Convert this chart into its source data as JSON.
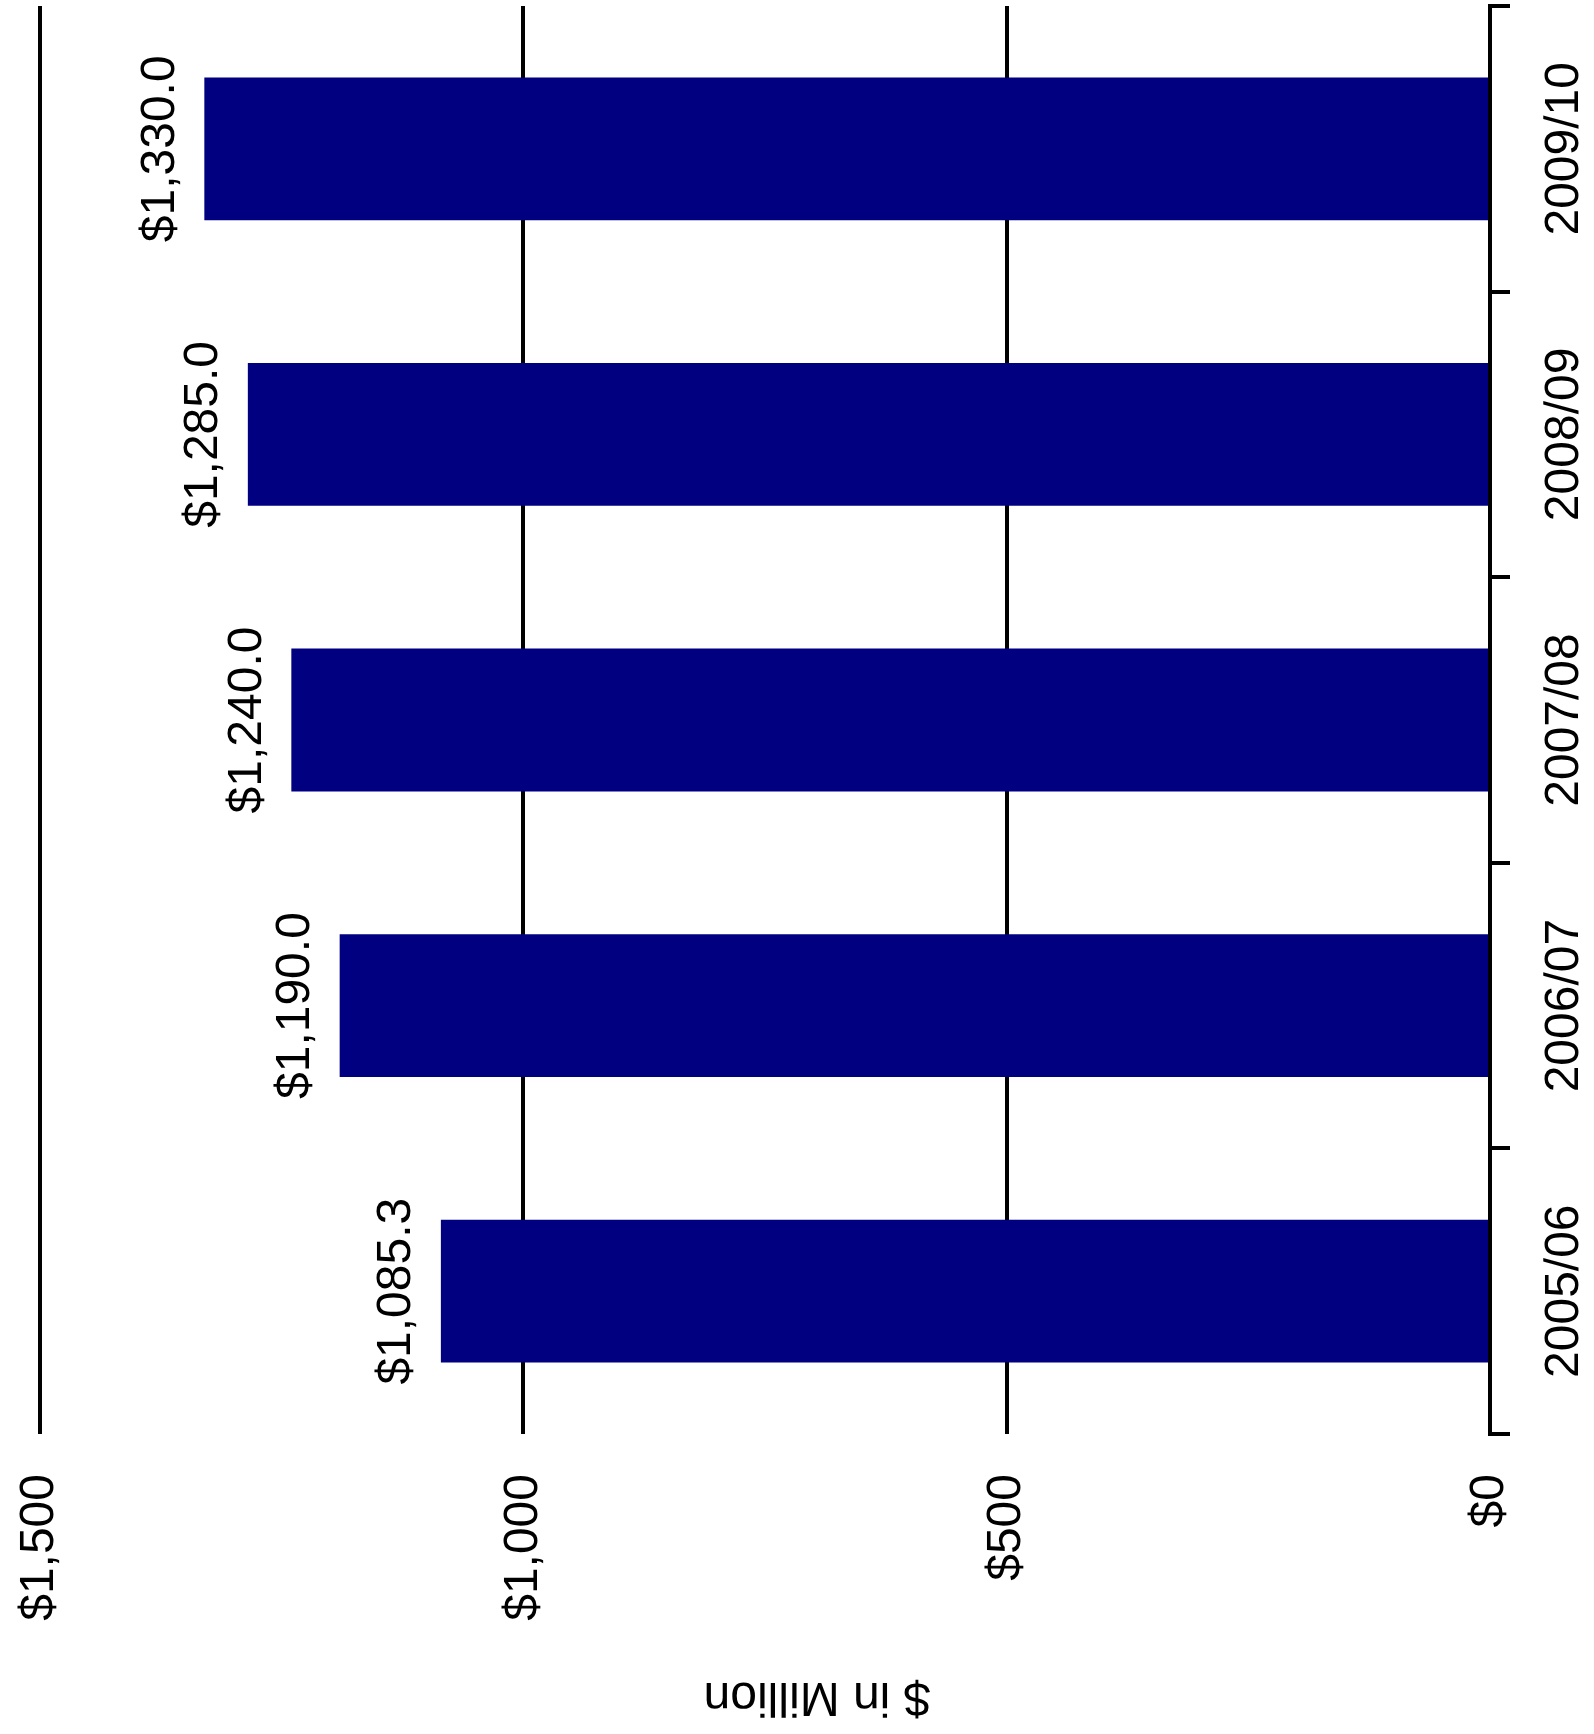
{
  "chart_data": {
    "type": "bar",
    "orientation": "horizontal",
    "xlabel": "$ in Million",
    "categories": [
      "2009/10",
      "2008/09",
      "2007/08",
      "2006/07",
      "2005/06"
    ],
    "values": [
      1330,
      1285,
      1240,
      1190,
      1085.3
    ],
    "color": "#000080",
    "value_labels": [
      "$1,330.0",
      "$1,285.0",
      "$1,240.0",
      "$1,190.0",
      "$1,085.3"
    ],
    "xlim": [
      1500,
      0
    ],
    "xticks": [
      {
        "value": 0,
        "label": "$0"
      },
      {
        "value": 500,
        "label": "$500"
      },
      {
        "value": 1000,
        "label": "$1,000"
      },
      {
        "value": 1500,
        "label": "$1,500"
      }
    ],
    "grid": "x"
  }
}
